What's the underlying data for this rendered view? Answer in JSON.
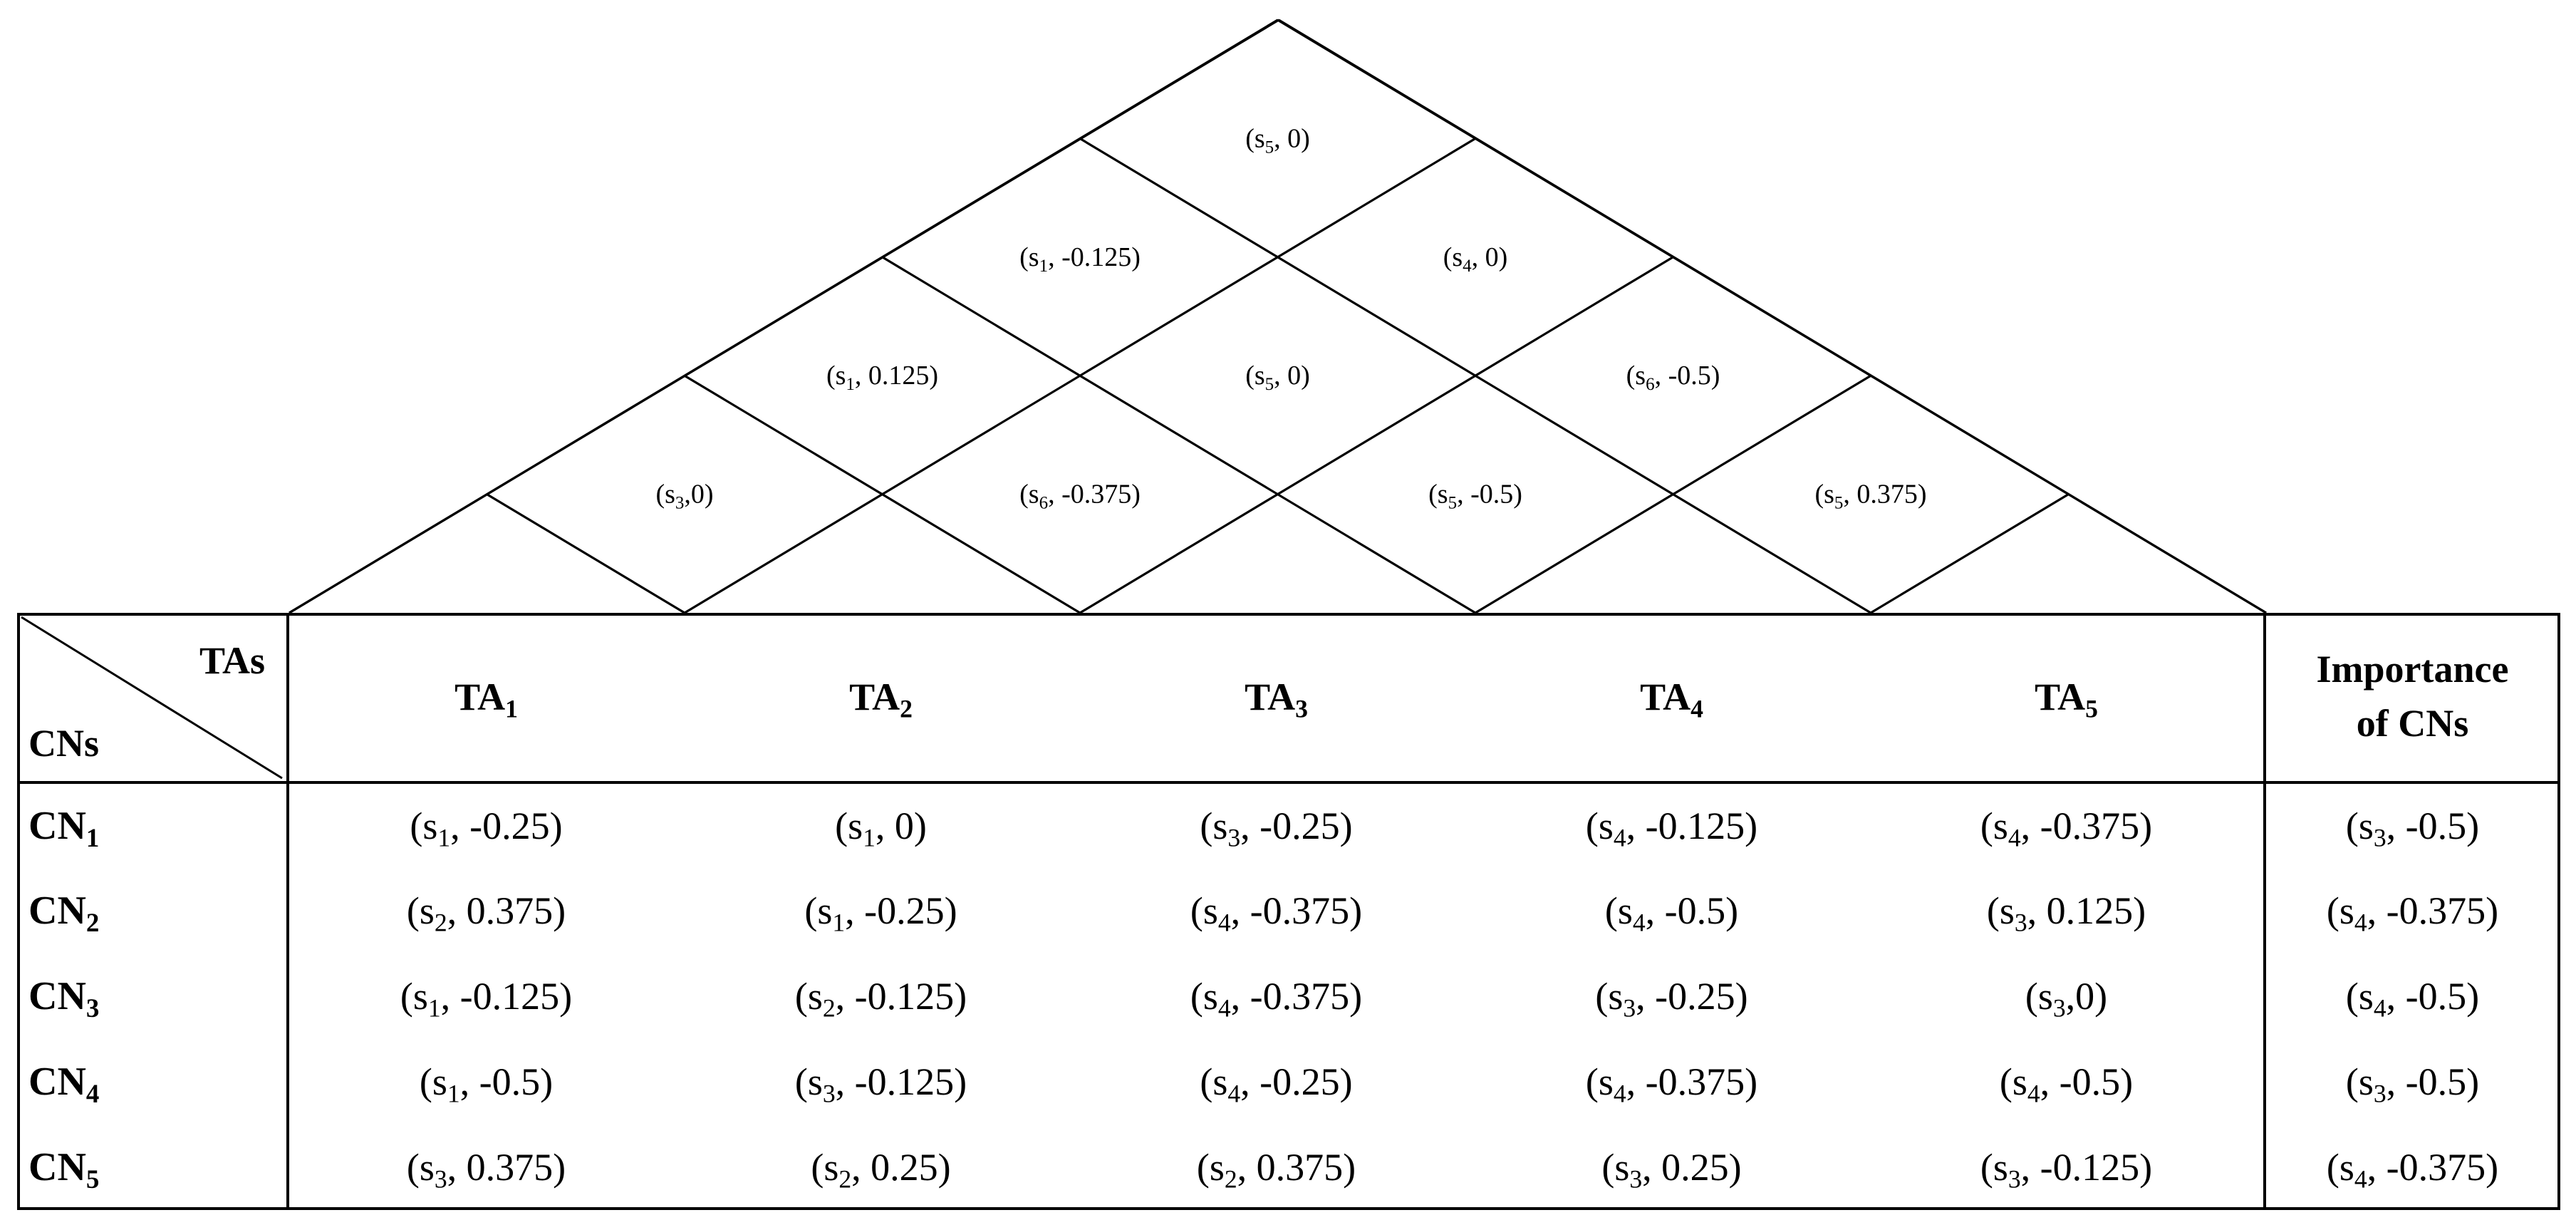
{
  "roof": {
    "cells": [
      {
        "pair": "TA1-TA5",
        "s": "5",
        "v": "0"
      },
      {
        "pair": "TA1-TA4",
        "s": "1",
        "v": "-0.125"
      },
      {
        "pair": "TA2-TA5",
        "s": "4",
        "v": "0"
      },
      {
        "pair": "TA1-TA3",
        "s": "1",
        "v": "0.125"
      },
      {
        "pair": "TA2-TA4",
        "s": "5",
        "v": "0"
      },
      {
        "pair": "TA3-TA5",
        "s": "6",
        "v": "-0.5"
      },
      {
        "pair": "TA1-TA2",
        "s": "3",
        "v": "0",
        "compact": true
      },
      {
        "pair": "TA2-TA3",
        "s": "6",
        "v": "-0.375"
      },
      {
        "pair": "TA3-TA4",
        "s": "5",
        "v": "-0.5"
      },
      {
        "pair": "TA4-TA5",
        "s": "5",
        "v": "0.375"
      }
    ]
  },
  "header": {
    "tas": "TAs",
    "cns": "CNs",
    "columns": [
      {
        "base": "TA",
        "sub": "1"
      },
      {
        "base": "TA",
        "sub": "2"
      },
      {
        "base": "TA",
        "sub": "3"
      },
      {
        "base": "TA",
        "sub": "4"
      },
      {
        "base": "TA",
        "sub": "5"
      }
    ],
    "importance_line1": "Importance",
    "importance_line2": "of CNs"
  },
  "rows": [
    {
      "base": "CN",
      "sub": "1",
      "cells": [
        [
          "1",
          "-0.25"
        ],
        [
          "1",
          "0"
        ],
        [
          "3",
          "-0.25"
        ],
        [
          "4",
          "-0.125"
        ],
        [
          "4",
          "-0.375"
        ]
      ],
      "importance": [
        "3",
        "-0.5"
      ]
    },
    {
      "base": "CN",
      "sub": "2",
      "cells": [
        [
          "2",
          "0.375"
        ],
        [
          "1",
          "-0.25"
        ],
        [
          "4",
          "-0.375"
        ],
        [
          "4",
          "-0.5"
        ],
        [
          "3",
          "0.125"
        ]
      ],
      "importance": [
        "4",
        "-0.375"
      ]
    },
    {
      "base": "CN",
      "sub": "3",
      "cells": [
        [
          "1",
          "-0.125"
        ],
        [
          "2",
          "-0.125"
        ],
        [
          "4",
          "-0.375"
        ],
        [
          "3",
          "-0.25"
        ],
        [
          "3",
          "0",
          true
        ]
      ],
      "importance": [
        "4",
        "-0.5"
      ]
    },
    {
      "base": "CN",
      "sub": "4",
      "cells": [
        [
          "1",
          "-0.5"
        ],
        [
          "3",
          "-0.125"
        ],
        [
          "4",
          "-0.25"
        ],
        [
          "4",
          "-0.375"
        ],
        [
          "4",
          "-0.5"
        ]
      ],
      "importance": [
        "3",
        "-0.5"
      ]
    },
    {
      "base": "CN",
      "sub": "5",
      "cells": [
        [
          "3",
          "0.375"
        ],
        [
          "2",
          "0.25"
        ],
        [
          "2",
          "0.375"
        ],
        [
          "3",
          "0.25"
        ],
        [
          "3",
          "-0.125"
        ]
      ],
      "importance": [
        "4",
        "-0.375"
      ]
    }
  ]
}
